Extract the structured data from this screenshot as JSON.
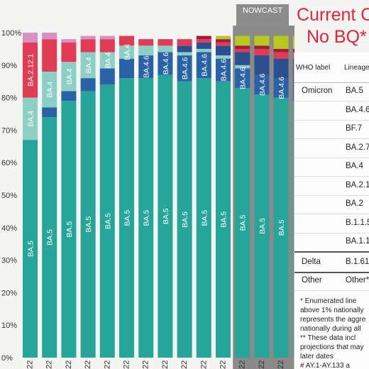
{
  "chart_data": {
    "type": "bar",
    "stacked": true,
    "y_tick_labels": [
      "100%",
      "90%",
      "80%",
      "70%",
      "60%",
      "50%",
      "40%",
      "30%",
      "20%",
      "10%",
      "0%"
    ],
    "ylim": [
      0,
      100
    ],
    "x_tick_labels": [
      "22",
      "22",
      "22",
      "22",
      "22",
      "22",
      "22",
      "22",
      "22",
      "22",
      "22",
      "22",
      "22",
      "22",
      "22"
    ],
    "nowcast_start_index": 11,
    "legend": "none",
    "grid": false,
    "series": [
      {
        "color": "#26a69a",
        "values": [
          67,
          74,
          79,
          82,
          84,
          86,
          86,
          87,
          85,
          86,
          85,
          83,
          81,
          80,
          79
        ]
      },
      {
        "color": "#2a62a8",
        "values": [
          0,
          3,
          3,
          4,
          5,
          6,
          7,
          7,
          8,
          8,
          7,
          6,
          6,
          6,
          6
        ]
      },
      {
        "color": "#8ccfc6",
        "values": [
          13,
          11,
          9,
          8,
          5,
          4,
          3,
          2,
          1,
          1,
          1,
          1,
          0,
          0,
          0
        ]
      },
      {
        "color": "#2b4f8f",
        "values": [
          0,
          0,
          0,
          0,
          0,
          0,
          0,
          0,
          2,
          2,
          3,
          4,
          6,
          6,
          7
        ]
      },
      {
        "color": "#e23b55",
        "values": [
          17,
          10,
          6,
          4,
          4,
          3,
          2,
          2,
          2,
          1,
          1,
          1,
          2,
          2,
          2
        ]
      },
      {
        "color": "#9e1d3a",
        "values": [
          0,
          0,
          0,
          0,
          0,
          0,
          0,
          0,
          0,
          1,
          1,
          1,
          1,
          1,
          1
        ]
      },
      {
        "color": "#b8c91e",
        "values": [
          0,
          0,
          0,
          0,
          0,
          0,
          0,
          0,
          0,
          0,
          1,
          3,
          3,
          4,
          4
        ]
      },
      {
        "color": "#d891c4",
        "values": [
          3,
          2,
          1,
          1,
          1,
          0,
          0,
          0,
          0,
          0,
          0,
          0,
          0,
          0,
          0
        ]
      }
    ],
    "segment_labels": [
      {
        "bar": 0,
        "series": 0,
        "text": "BA.5"
      },
      {
        "bar": 0,
        "series": 2,
        "text": "BA.4"
      },
      {
        "bar": 0,
        "series": 4,
        "text": "BA.2.12.1"
      },
      {
        "bar": 1,
        "series": 0,
        "text": "BA.5"
      },
      {
        "bar": 1,
        "series": 2,
        "text": "BA.4"
      },
      {
        "bar": 2,
        "series": 0,
        "text": "BA.5"
      },
      {
        "bar": 2,
        "series": 2,
        "text": "BA.4"
      },
      {
        "bar": 3,
        "series": 0,
        "text": "BA.5"
      },
      {
        "bar": 3,
        "series": 2,
        "text": "BA.4"
      },
      {
        "bar": 4,
        "series": 0,
        "text": "BA.5"
      },
      {
        "bar": 4,
        "series": 2,
        "text": "BA.4"
      },
      {
        "bar": 5,
        "series": 0,
        "text": "BA.5"
      },
      {
        "bar": 5,
        "series": 2,
        "text": "BA.4"
      },
      {
        "bar": 6,
        "series": 0,
        "text": "BA.5"
      },
      {
        "bar": 6,
        "series": 1,
        "text": "BA.4.6"
      },
      {
        "bar": 7,
        "series": 0,
        "text": "BA.5"
      },
      {
        "bar": 7,
        "series": 1,
        "text": "BA.4.6"
      },
      {
        "bar": 8,
        "series": 0,
        "text": "BA.5"
      },
      {
        "bar": 8,
        "series": 1,
        "text": "BA.4.6"
      },
      {
        "bar": 9,
        "series": 0,
        "text": "BA.5"
      },
      {
        "bar": 9,
        "series": 1,
        "text": "BA.4.6"
      },
      {
        "bar": 10,
        "series": 0,
        "text": "BA.5"
      },
      {
        "bar": 10,
        "series": 1,
        "text": "BA.4.6"
      },
      {
        "bar": 11,
        "series": 0,
        "text": "BA.5"
      },
      {
        "bar": 11,
        "series": 1,
        "text": "BA.4.6"
      },
      {
        "bar": 12,
        "series": 0,
        "text": "BA.5"
      },
      {
        "bar": 12,
        "series": 1,
        "text": "BA.4.6"
      },
      {
        "bar": 13,
        "series": 0,
        "text": "BA.5"
      },
      {
        "bar": 13,
        "series": 1,
        "text": "BA.4.6"
      },
      {
        "bar": 14,
        "series": 0,
        "text": "BA.5"
      },
      {
        "bar": 14,
        "series": 1,
        "text": "BA.4.6"
      }
    ]
  },
  "nowcast_label": "NOWCAST",
  "headline": {
    "line1": "Current C",
    "line2": "No BQ*"
  },
  "table": {
    "header_who": "WHO label",
    "header_lineage": "Lineage",
    "rows": [
      {
        "who": "Omicron",
        "lineage": "BA.5"
      },
      {
        "who": "",
        "lineage": "BA.4.6"
      },
      {
        "who": "",
        "lineage": "BF.7"
      },
      {
        "who": "",
        "lineage": "BA.2.7"
      },
      {
        "who": "",
        "lineage": "BA.4"
      },
      {
        "who": "",
        "lineage": "BA.2.1"
      },
      {
        "who": "",
        "lineage": "BA.2"
      },
      {
        "who": "",
        "lineage": "B.1.1.5"
      },
      {
        "who": "",
        "lineage": "BA.1.1"
      },
      {
        "who": "Delta",
        "lineage": "B.1.61"
      },
      {
        "who": "Other",
        "lineage": "Other*"
      }
    ]
  },
  "notes": [
    "*    Enumerated line",
    "above 1% nationally",
    "represents the aggre",
    "nationally during all",
    "**    These data incl",
    "projections that may",
    "later dates",
    "#    AY.1-AY.133 a"
  ]
}
